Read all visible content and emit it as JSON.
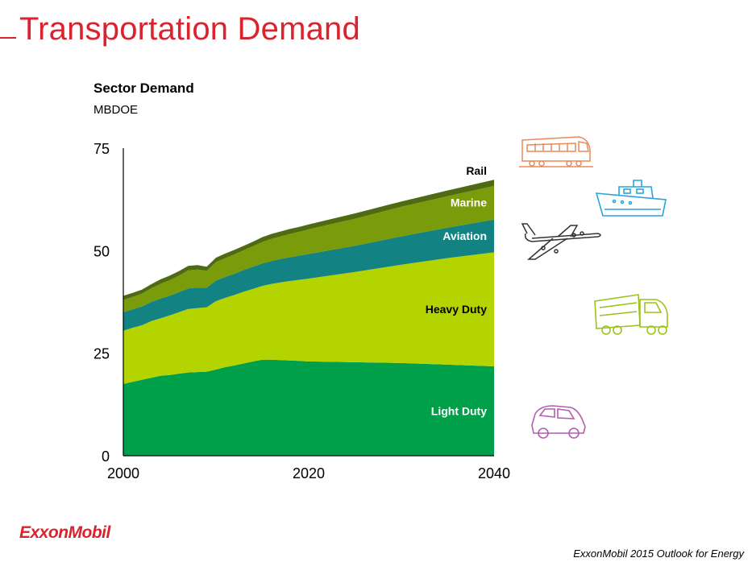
{
  "slide": {
    "title": "Transportation Demand",
    "brand": "ExxonMobil",
    "footer": "ExxonMobil 2015 Outlook for Energy"
  },
  "chart_data": {
    "type": "area",
    "stacked": true,
    "title": "Sector Demand",
    "ylabel": "MBDOE",
    "xlabel": "",
    "xlim": [
      2000,
      2040
    ],
    "ylim": [
      0,
      75
    ],
    "x_ticks": [
      2000,
      2020,
      2040
    ],
    "y_ticks": [
      0,
      25,
      50,
      75
    ],
    "x": [
      2000,
      2001,
      2002,
      2003,
      2004,
      2005,
      2006,
      2007,
      2008,
      2009,
      2010,
      2011,
      2012,
      2013,
      2014,
      2015,
      2016,
      2017,
      2018,
      2019,
      2020,
      2025,
      2030,
      2035,
      2040
    ],
    "series": [
      {
        "name": "Light Duty",
        "label": "Light Duty",
        "color": "#00a04a",
        "label_color": "#ffffff",
        "values": [
          17.5,
          18.0,
          18.5,
          19.0,
          19.5,
          19.7,
          20.0,
          20.3,
          20.4,
          20.5,
          21.0,
          21.6,
          22.0,
          22.5,
          23.0,
          23.4,
          23.4,
          23.3,
          23.2,
          23.1,
          23.0,
          22.8,
          22.6,
          22.2,
          21.8
        ]
      },
      {
        "name": "Heavy Duty",
        "label": "Heavy Duty",
        "color": "#b4d400",
        "label_color": "#000000",
        "values": [
          13.0,
          13.2,
          13.3,
          13.8,
          14.0,
          14.5,
          15.0,
          15.5,
          15.6,
          15.7,
          16.7,
          16.9,
          17.2,
          17.5,
          17.7,
          18.0,
          18.5,
          19.0,
          19.4,
          19.8,
          20.2,
          22.0,
          24.0,
          26.0,
          27.8
        ]
      },
      {
        "name": "Aviation",
        "label": "Aviation",
        "color": "#138282",
        "label_color": "#ffffff",
        "values": [
          4.5,
          4.5,
          4.6,
          4.7,
          4.8,
          4.8,
          4.9,
          5.0,
          5.0,
          4.8,
          5.0,
          5.1,
          5.2,
          5.3,
          5.4,
          5.5,
          5.6,
          5.7,
          5.8,
          5.9,
          6.0,
          6.4,
          6.9,
          7.4,
          8.0
        ]
      },
      {
        "name": "Marine",
        "label": "Marine",
        "color": "#7a9b0a",
        "label_color": "#ffffff",
        "values": [
          3.0,
          3.0,
          3.1,
          3.3,
          3.6,
          3.8,
          4.0,
          4.4,
          4.4,
          4.1,
          4.5,
          4.6,
          4.7,
          4.8,
          5.0,
          5.2,
          5.4,
          5.5,
          5.7,
          5.8,
          6.0,
          6.6,
          7.2,
          7.7,
          8.2
        ]
      },
      {
        "name": "Rail",
        "label": "Rail",
        "color": "#4e6b12",
        "label_color": "#000000",
        "values": [
          1.0,
          1.0,
          1.0,
          1.0,
          1.1,
          1.1,
          1.1,
          1.1,
          1.1,
          1.0,
          1.1,
          1.1,
          1.1,
          1.1,
          1.1,
          1.2,
          1.2,
          1.2,
          1.2,
          1.2,
          1.2,
          1.3,
          1.3,
          1.4,
          1.5
        ]
      }
    ]
  },
  "icons": {
    "train": {
      "name": "train-icon",
      "color": "#e98a5a"
    },
    "ship": {
      "name": "ship-icon",
      "color": "#29a3e0"
    },
    "plane": {
      "name": "airplane-icon",
      "color": "#333333"
    },
    "truck": {
      "name": "truck-icon",
      "color": "#9cc21c"
    },
    "car": {
      "name": "car-icon",
      "color": "#b15db0"
    }
  }
}
